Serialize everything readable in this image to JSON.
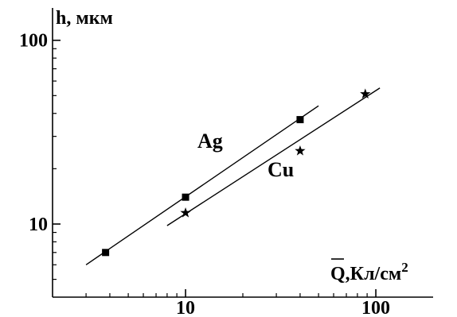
{
  "chart_data": {
    "type": "scatter",
    "title": "",
    "xlabel": "Q̄,Кл/см²",
    "xlabel_main": "Q",
    "xlabel_rest": ",Кл/см",
    "xlabel_sup": "2",
    "ylabel": "h, мкм",
    "xscale": "log",
    "yscale": "log",
    "xlim": [
      2,
      200
    ],
    "ylim": [
      4,
      150
    ],
    "x_ticks": [
      10,
      100
    ],
    "x_tick_labels": [
      "10",
      "100"
    ],
    "y_ticks": [
      10,
      100
    ],
    "y_tick_labels": [
      "10",
      "100"
    ],
    "grid": false,
    "legend": "none",
    "series": [
      {
        "name": "Ag",
        "marker": "square",
        "points": [
          {
            "x": 3.8,
            "y": 7.0
          },
          {
            "x": 10,
            "y": 14.0
          },
          {
            "x": 40,
            "y": 37.0
          }
        ],
        "fit": {
          "x": [
            3,
            50
          ],
          "y": [
            6,
            44
          ]
        }
      },
      {
        "name": "Cu",
        "marker": "star",
        "points": [
          {
            "x": 10,
            "y": 11.5
          },
          {
            "x": 40,
            "y": 25.0
          },
          {
            "x": 88,
            "y": 51.0
          }
        ],
        "fit": {
          "x": [
            8,
            105
          ],
          "y": [
            9.8,
            55
          ]
        }
      }
    ]
  }
}
